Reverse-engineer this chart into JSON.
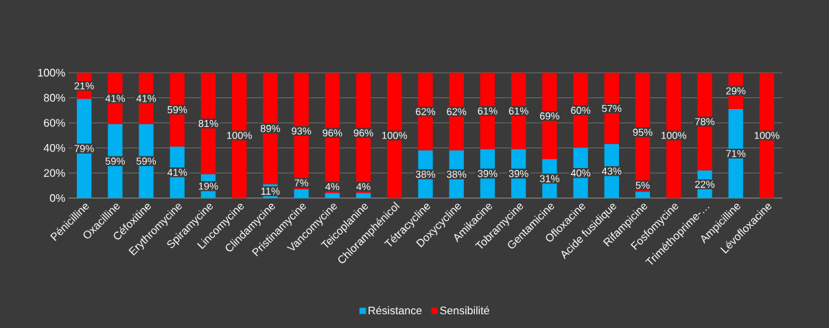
{
  "chart_data": {
    "type": "bar",
    "stacked": true,
    "categories": [
      "Pénicilline",
      "Oxacilline",
      "Céfoxitine",
      "Erythromycine",
      "Spiramycine",
      "Lincomycine",
      "Clindamycine",
      "Pristinamycine",
      "Vancomycine",
      "Teicoplanine",
      "Chloramphénicol",
      "Tétracycline",
      "Doxycycline",
      "Amikacine",
      "Tobramycine",
      "Gentamicine",
      "Ofloxacine",
      "Acide fusidique",
      "Rifampicine",
      "Fosfomycine",
      "Triméthoprime-…",
      "Ampicilline",
      "Lévofloxacine"
    ],
    "series": [
      {
        "name": "Résistance",
        "color": "#00b0f0",
        "values": [
          79,
          59,
          59,
          41,
          19,
          0,
          11,
          7,
          4,
          4,
          0,
          38,
          38,
          39,
          39,
          31,
          40,
          43,
          5,
          0,
          22,
          71,
          0
        ],
        "value_labels": [
          "79%",
          "59%",
          "59%",
          "41%",
          "19%",
          null,
          "11%",
          "7%",
          "4%",
          "4%",
          null,
          "38%",
          "38%",
          "39%",
          "39%",
          "31%",
          "40%",
          "43%",
          "5%",
          null,
          "22%",
          "71%",
          null
        ]
      },
      {
        "name": "Sensibilité",
        "color": "#ff0000",
        "values": [
          21,
          41,
          41,
          59,
          81,
          100,
          89,
          93,
          96,
          96,
          100,
          62,
          62,
          61,
          61,
          69,
          60,
          57,
          95,
          100,
          78,
          29,
          100
        ],
        "value_labels": [
          "21%",
          "41%",
          "41%",
          "59%",
          "81%",
          "100%",
          "89%",
          "93%",
          "96%",
          "96%",
          "100%",
          "62%",
          "62%",
          "61%",
          "61%",
          "69%",
          "60%",
          "57%",
          "95%",
          "100%",
          "78%",
          "29%",
          "100%"
        ]
      }
    ],
    "ylim": [
      0,
      100
    ],
    "yticks": [
      {
        "value": 0,
        "label": "0%"
      },
      {
        "value": 20,
        "label": "20%"
      },
      {
        "value": 40,
        "label": "40%"
      },
      {
        "value": 60,
        "label": "60%"
      },
      {
        "value": 80,
        "label": "80%"
      },
      {
        "value": 100,
        "label": "100%"
      }
    ],
    "grid": "y",
    "legend": "bottom"
  }
}
